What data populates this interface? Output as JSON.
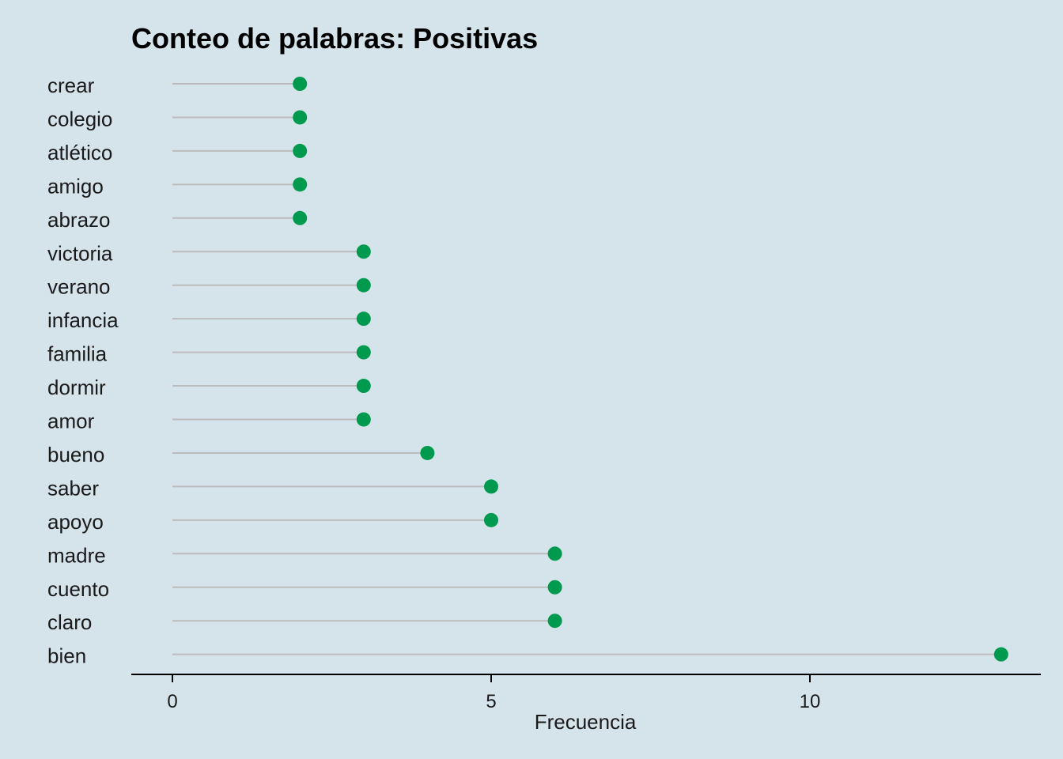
{
  "chart_data": {
    "type": "lollipop",
    "title": "Conteo de palabras: Positivas",
    "xlabel": "Frecuencia",
    "ylabel": "",
    "xlim": [
      0,
      13.6
    ],
    "x_ticks": [
      0,
      5,
      10
    ],
    "grid": false,
    "colors": {
      "point": "#009a4e",
      "stem": "#bcbcbc",
      "background": "#d5e4eb",
      "axis": "#000000"
    },
    "categories": [
      "crear",
      "colegio",
      "atlético",
      "amigo",
      "abrazo",
      "victoria",
      "verano",
      "infancia",
      "familia",
      "dormir",
      "amor",
      "bueno",
      "saber",
      "apoyo",
      "madre",
      "cuento",
      "claro",
      "bien"
    ],
    "values": [
      2,
      2,
      2,
      2,
      2,
      3,
      3,
      3,
      3,
      3,
      3,
      4,
      5,
      5,
      6,
      6,
      6,
      13
    ]
  }
}
